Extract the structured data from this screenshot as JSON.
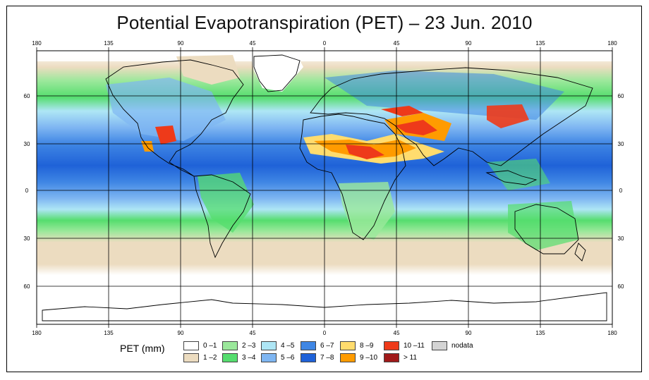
{
  "title": "Potential Evapotranspiration (PET) – 23 Jun. 2010",
  "lon_ticks": [
    "180",
    "135",
    "90",
    "45",
    "0",
    "45",
    "90",
    "135",
    "180"
  ],
  "lat_ticks": [
    "60",
    "30",
    "0",
    "30",
    "60"
  ],
  "legend": {
    "title": "PET (mm)",
    "items": [
      {
        "label": "0 –1",
        "color": "#ffffff"
      },
      {
        "label": "1 –2",
        "color": "#ecdcc0"
      },
      {
        "label": "2 –3",
        "color": "#9be89b"
      },
      {
        "label": "3 –4",
        "color": "#55dd6e"
      },
      {
        "label": "4 –5",
        "color": "#aee6f5"
      },
      {
        "label": "5 –6",
        "color": "#7fb6f2"
      },
      {
        "label": "6 –7",
        "color": "#3f86e4"
      },
      {
        "label": "7 –8",
        "color": "#1f62d8"
      },
      {
        "label": "8 –9",
        "color": "#ffdc6e"
      },
      {
        "label": "9 –10",
        "color": "#ff9b00"
      },
      {
        "label": "10 –11",
        "color": "#ee3a1a"
      },
      {
        "label": "> 11",
        "color": "#a01a1a"
      },
      {
        "label": "nodata",
        "color": "#d4d4d4"
      }
    ]
  }
}
